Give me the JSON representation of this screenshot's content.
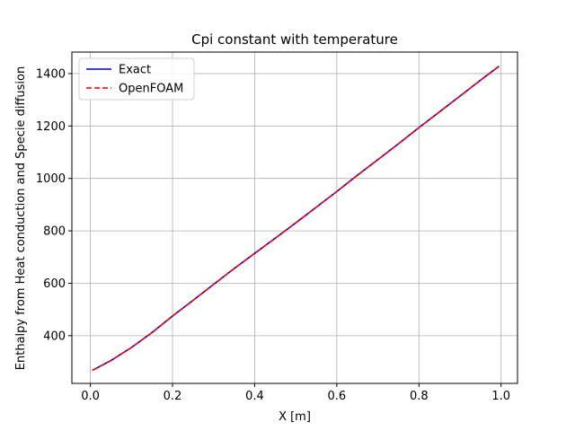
{
  "chart_data": {
    "type": "line",
    "title": "Cpi constant with temperature",
    "xlabel": "X [m]",
    "ylabel": "Enthalpy from Heat conduction and Specie diffusion",
    "xlim": [
      -0.045,
      1.04
    ],
    "ylim": [
      218,
      1482
    ],
    "xticks": [
      0.0,
      0.2,
      0.4,
      0.6,
      0.8,
      1.0
    ],
    "xtick_labels": [
      "0.0",
      "0.2",
      "0.4",
      "0.6",
      "0.8",
      "1.0"
    ],
    "yticks": [
      400,
      600,
      800,
      1000,
      1200,
      1400
    ],
    "ytick_labels": [
      "400",
      "600",
      "800",
      "1000",
      "1200",
      "1400"
    ],
    "grid": true,
    "legend_position": "top-left",
    "series": [
      {
        "name": "Exact",
        "color": "#0000cc",
        "style": "solid",
        "x": [
          0.005,
          0.05,
          0.1,
          0.15,
          0.2,
          0.25,
          0.3,
          0.35,
          0.4,
          0.45,
          0.5,
          0.55,
          0.6,
          0.65,
          0.7,
          0.75,
          0.8,
          0.85,
          0.9,
          0.95,
          0.995
        ],
        "y": [
          268,
          305,
          355,
          412,
          475,
          535,
          596,
          656,
          714,
          772,
          830,
          890,
          950,
          1012,
          1072,
          1132,
          1194,
          1254,
          1314,
          1375,
          1428
        ]
      },
      {
        "name": "OpenFOAM",
        "color": "#ff0000",
        "style": "dashed",
        "x": [
          0.005,
          0.05,
          0.1,
          0.15,
          0.2,
          0.25,
          0.3,
          0.35,
          0.4,
          0.45,
          0.5,
          0.55,
          0.6,
          0.65,
          0.7,
          0.75,
          0.8,
          0.85,
          0.9,
          0.95,
          0.995
        ],
        "y": [
          268,
          305,
          355,
          412,
          475,
          535,
          596,
          656,
          714,
          772,
          830,
          890,
          950,
          1012,
          1072,
          1132,
          1194,
          1254,
          1314,
          1375,
          1428
        ]
      }
    ]
  }
}
